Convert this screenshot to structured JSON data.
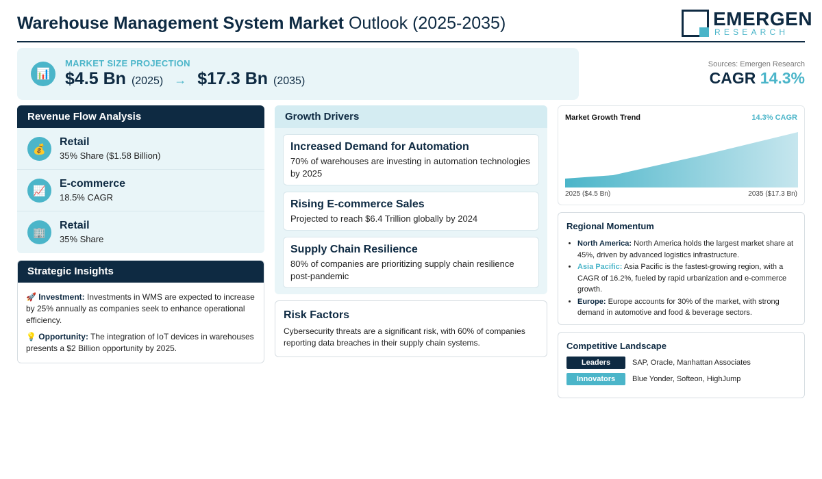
{
  "header": {
    "title_bold": "Warehouse Management System Market",
    "title_light": "Outlook (2025-2035)",
    "logo_main": "EMERGEN",
    "logo_sub": "RESEARCH"
  },
  "projection": {
    "icon": "bar-chart-icon",
    "label": "MARKET SIZE PROJECTION",
    "start_value": "$4.5 Bn",
    "start_year": "(2025)",
    "arrow": "→",
    "end_value": "$17.3 Bn",
    "end_year": "(2035)"
  },
  "summary": {
    "sources": "Sources: Emergen Research",
    "cagr_label": "CAGR",
    "cagr_value": "14.3%"
  },
  "revenue": {
    "title": "Revenue Flow Analysis",
    "items": [
      {
        "icon": "money-bag-icon",
        "glyph": "💰",
        "title": "Retail",
        "sub": "35% Share ($1.58 Billion)"
      },
      {
        "icon": "trend-chart-icon",
        "glyph": "📈",
        "title": "E-commerce",
        "sub": "18.5% CAGR"
      },
      {
        "icon": "building-icon",
        "glyph": "🏢",
        "title": "Retail",
        "sub": "35% Share"
      }
    ]
  },
  "strategic": {
    "title": "Strategic Insights",
    "items": [
      {
        "icon": "rocket-icon",
        "glyph": "🚀",
        "label": "Investment:",
        "text": "Investments in WMS are expected to increase by 25% annually as companies seek to enhance operational efficiency."
      },
      {
        "icon": "lightbulb-icon",
        "glyph": "💡",
        "label": "Opportunity:",
        "text": "The integration of IoT devices in warehouses presents a $2 Billion opportunity by 2025."
      }
    ]
  },
  "drivers": {
    "title": "Growth Drivers",
    "items": [
      {
        "title": "Increased Demand for Automation",
        "text": "70% of warehouses are investing in automation technologies by 2025"
      },
      {
        "title": "Rising E-commerce Sales",
        "text": "Projected to reach $6.4 Trillion globally by 2024"
      },
      {
        "title": "Supply Chain Resilience",
        "text": "80% of companies are prioritizing supply chain resilience post-pandemic"
      }
    ]
  },
  "risk": {
    "title": "Risk Factors",
    "text": "Cybersecurity threats are a significant risk, with 60% of companies reporting data breaches in their supply chain systems."
  },
  "trend": {
    "title": "Market Growth Trend",
    "cagr": "14.3% CAGR",
    "start_label": "2025 ($4.5 Bn)",
    "end_label": "2035 ($17.3 Bn)"
  },
  "regional": {
    "title": "Regional Momentum",
    "items": [
      {
        "label": "North America:",
        "text": "North America holds the largest market share at 45%, driven by advanced logistics infrastructure."
      },
      {
        "label": "Asia Pacific:",
        "text": "Asia Pacific is the fastest-growing region, with a CAGR of 16.2%, fueled by rapid urbanization and e-commerce growth."
      },
      {
        "label": "Europe:",
        "text": "Europe accounts for 30% of the market, with strong demand in automotive and food & beverage sectors."
      }
    ]
  },
  "competitive": {
    "title": "Competitive Landscape",
    "rows": [
      {
        "tag": "Leaders",
        "names": "SAP, Oracle, Manhattan Associates"
      },
      {
        "tag": "Innovators",
        "names": "Blue Yonder, Softeon, HighJump"
      }
    ]
  },
  "colors": {
    "navy": "#0e2a42",
    "teal": "#4bb5c9",
    "panel_bg": "#e9f5f8"
  }
}
